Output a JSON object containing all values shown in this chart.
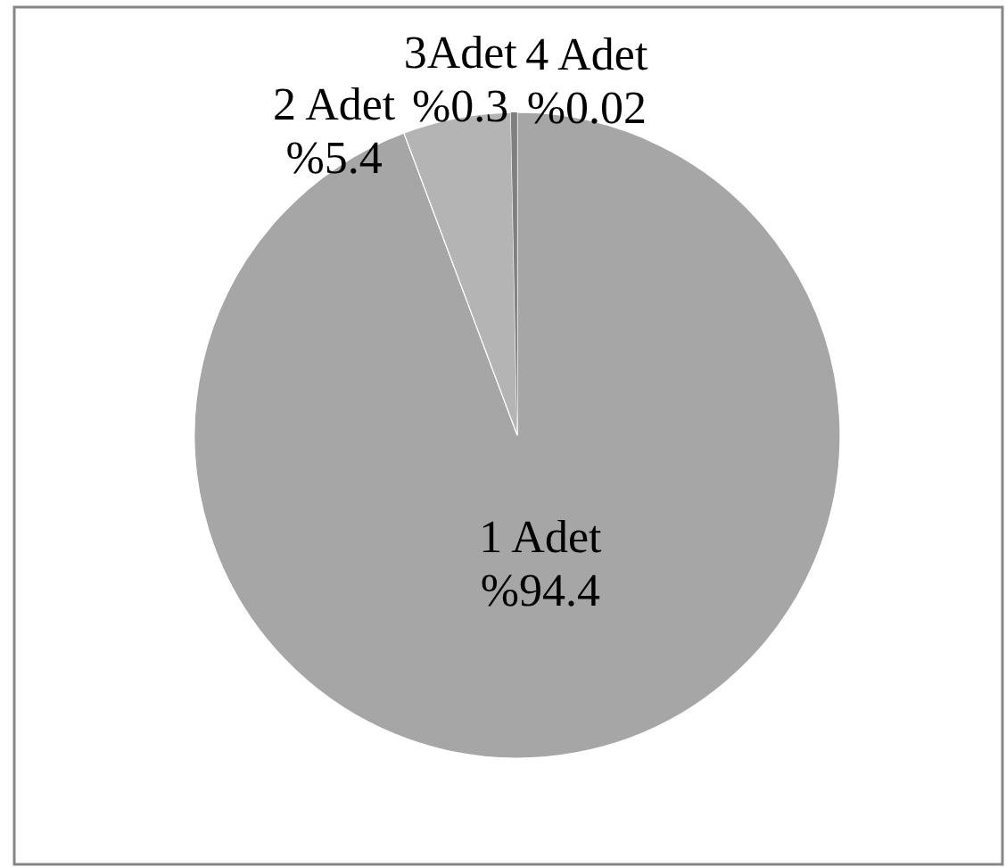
{
  "chart_data": {
    "type": "pie",
    "categories": [
      "1 Adet",
      "2 Adet",
      "3Adet",
      "4 Adet"
    ],
    "values": [
      94.4,
      5.4,
      0.3,
      0.02
    ],
    "value_labels": [
      "%94.4",
      "%5.4",
      "%0.3",
      "%0.02"
    ],
    "colors": [
      "#a6a6a6",
      "#b4b4b4",
      "#808080",
      "#5a5a5a"
    ]
  }
}
